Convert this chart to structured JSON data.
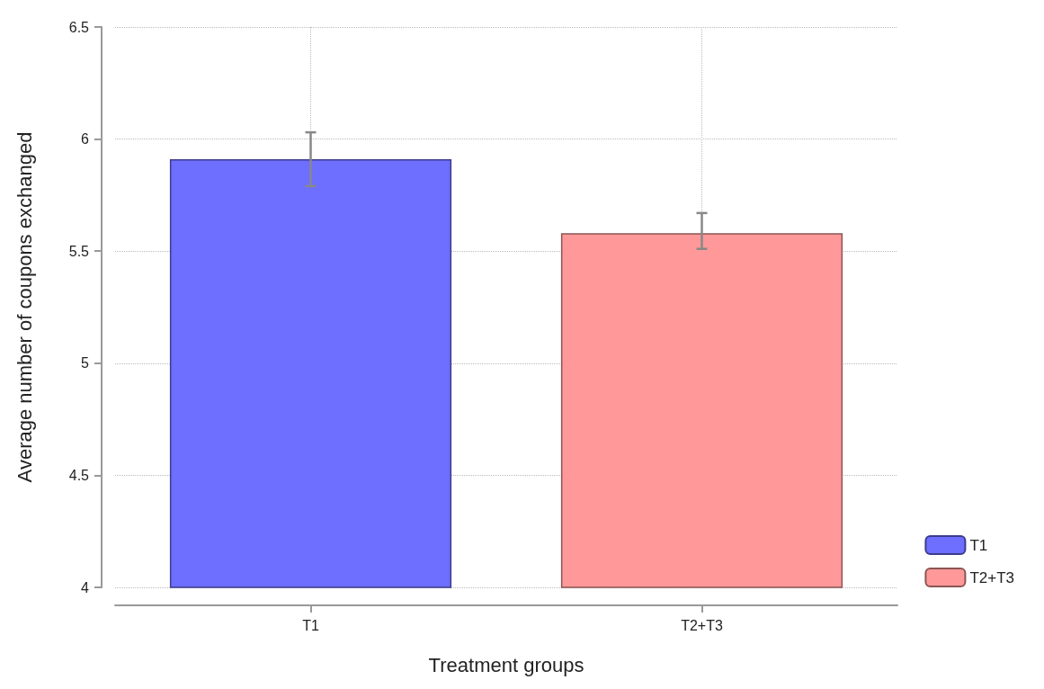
{
  "chart_data": {
    "type": "bar",
    "xlabel": "Treatment groups",
    "ylabel": "Average number of coupons exchanged",
    "categories": [
      "T1",
      "T2+T3"
    ],
    "series": [
      {
        "name": "T1",
        "color": "#6e6eff",
        "values": [
          5.91,
          null
        ],
        "errors": [
          [
            5.79,
            6.03
          ],
          null
        ]
      },
      {
        "name": "T2+T3",
        "color": "#ff9999",
        "values": [
          null,
          5.58
        ],
        "errors": [
          null,
          [
            5.51,
            5.67
          ]
        ]
      }
    ],
    "ylim": [
      4,
      6.5
    ],
    "yticks": [
      4,
      4.5,
      5,
      5.5,
      6,
      6.5
    ],
    "grid": true,
    "legend": "bottom right"
  }
}
